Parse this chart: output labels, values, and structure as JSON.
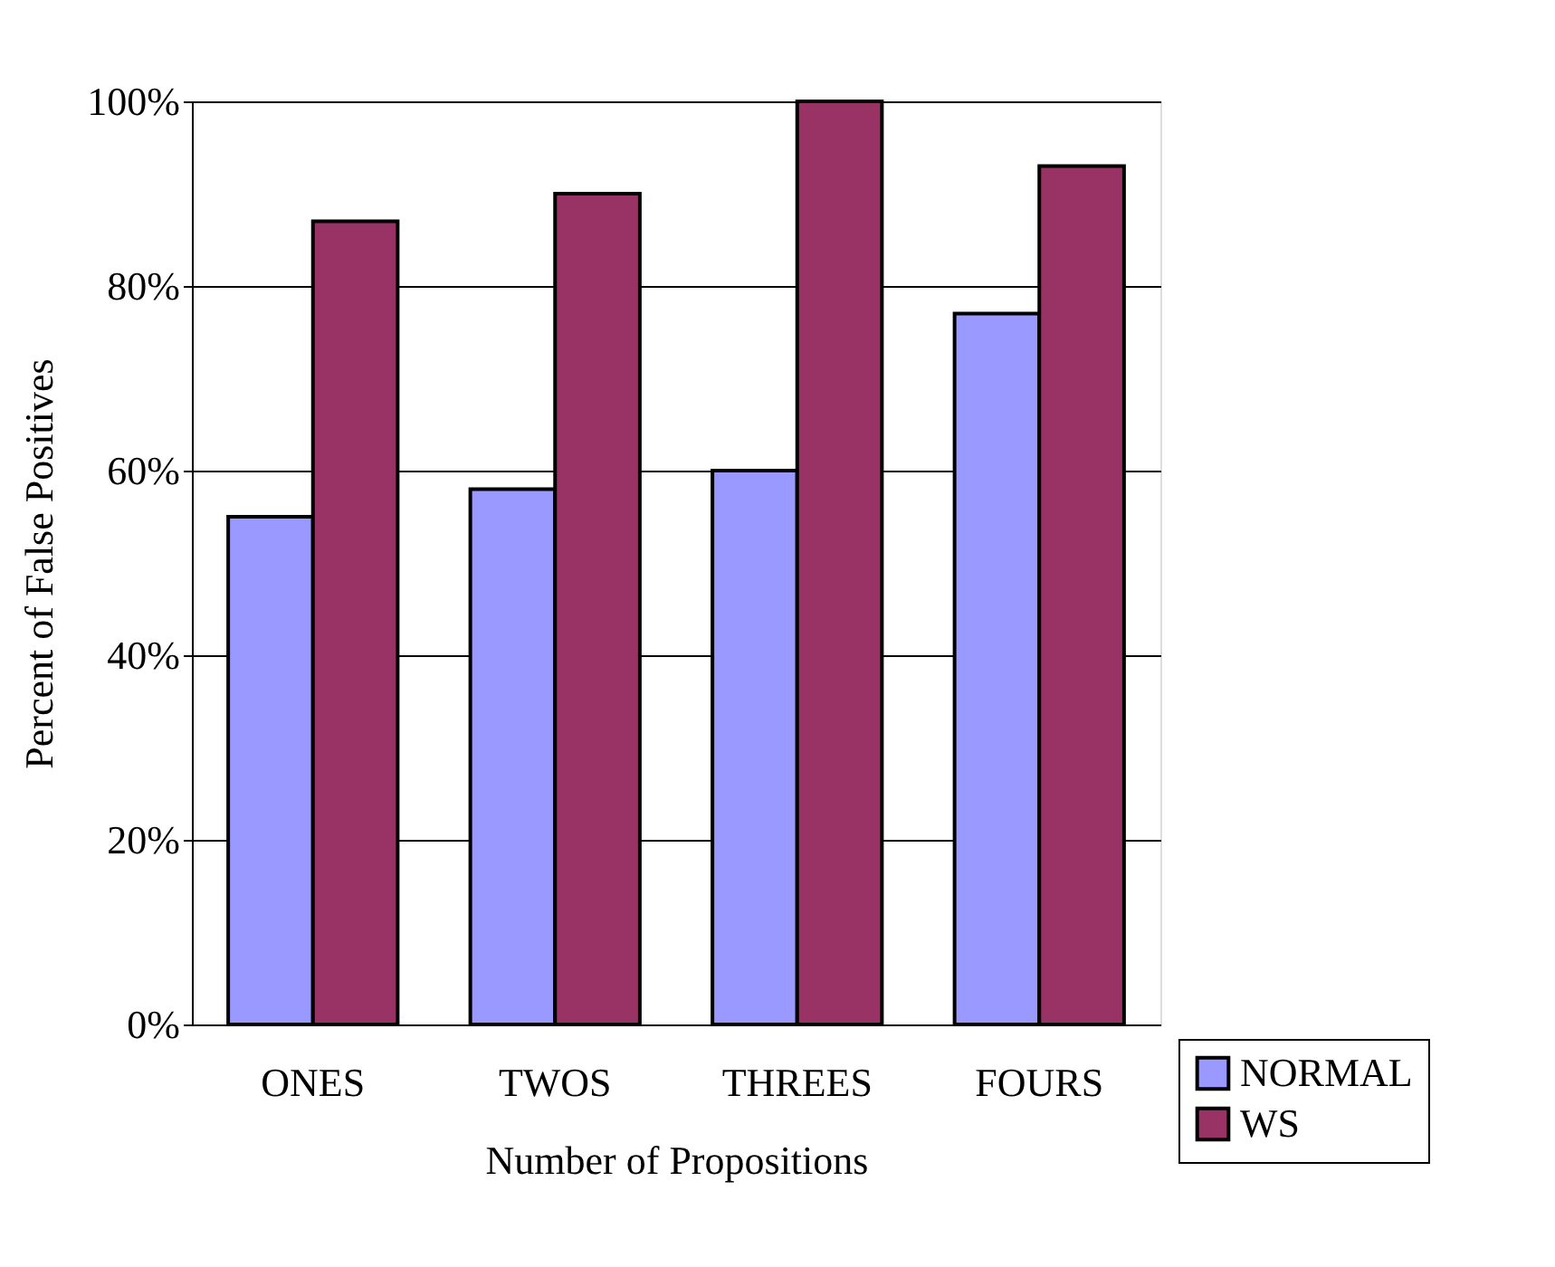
{
  "chart_data": {
    "type": "bar",
    "xlabel": "Number of Propositions",
    "ylabel": "Percent of False Positives",
    "categories": [
      "ONES",
      "TWOS",
      "THREES",
      "FOURS"
    ],
    "series": [
      {
        "name": "NORMAL",
        "color": "#9999ff",
        "values": [
          55,
          58,
          60,
          77
        ]
      },
      {
        "name": "WS",
        "color": "#993366",
        "values": [
          87,
          90,
          100,
          93
        ]
      }
    ],
    "ylim": [
      0,
      100
    ],
    "yticks": [
      {
        "value": 0,
        "label": "0%"
      },
      {
        "value": 20,
        "label": "20%"
      },
      {
        "value": 40,
        "label": "40%"
      },
      {
        "value": 60,
        "label": "60%"
      },
      {
        "value": 80,
        "label": "80%"
      },
      {
        "value": 100,
        "label": "100%"
      }
    ],
    "grid": "y",
    "legend": "bottom right"
  }
}
